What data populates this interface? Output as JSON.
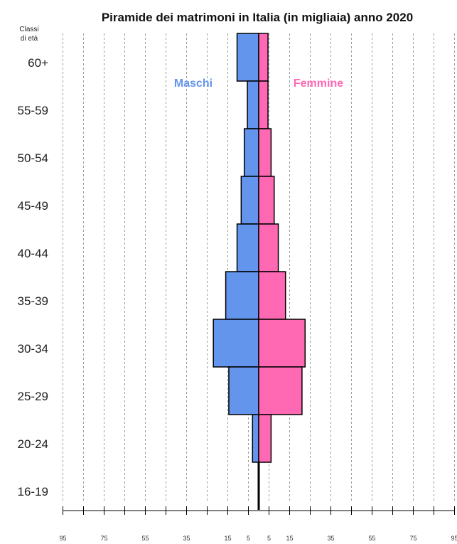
{
  "chart_data": {
    "type": "bar",
    "orientation": "horizontal-pyramid",
    "title": "Piramide dei matrimoni in Italia (in migliaia) anno 2020",
    "y_caption": [
      "Classi",
      "di età"
    ],
    "categories": [
      "60+",
      "55-59",
      "50-54",
      "45-49",
      "40-44",
      "35-39",
      "30-34",
      "25-29",
      "20-24",
      "16-19"
    ],
    "series": [
      {
        "name": "Maschi",
        "color": "#6495ED",
        "values": [
          10.5,
          5.5,
          7,
          8.5,
          10.5,
          16,
          22,
          14.5,
          3,
          0.5
        ]
      },
      {
        "name": "Femmine",
        "color": "#FF69B4",
        "values": [
          4.5,
          4.5,
          6,
          7.5,
          9.5,
          13,
          22.5,
          21,
          6,
          0.5
        ]
      }
    ],
    "xlim": [
      -95,
      95
    ],
    "x_tick_labels": [
      "95",
      "75",
      "55",
      "35",
      "15",
      "5",
      "5",
      "15",
      "35",
      "55",
      "75",
      "95"
    ],
    "grid": "vertical dashed",
    "legend": "inside-top"
  }
}
